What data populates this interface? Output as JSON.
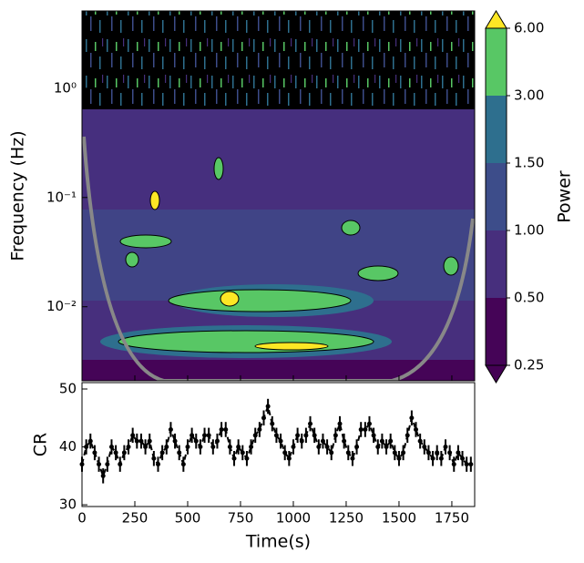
{
  "chart_data": [
    {
      "type": "contour",
      "ylabel": "Frequency (Hz)",
      "yscale": "log",
      "xlim": [
        0,
        1858
      ],
      "ylim": [
        0.0021,
        5.1
      ],
      "yticks": [
        {
          "value": 0.01,
          "label": "10⁻²"
        },
        {
          "value": 0.1,
          "label": "10⁻¹"
        },
        {
          "value": 1,
          "label": "10⁰"
        }
      ],
      "colorbar": {
        "label": "Power",
        "levels": [
          0.25,
          0.5,
          1,
          1.5,
          3,
          6
        ],
        "ticks": [
          {
            "value": 0.25,
            "label": "0.25"
          },
          {
            "value": 0.5,
            "label": "0.50"
          },
          {
            "value": 1,
            "label": "1.00"
          },
          {
            "value": 1.5,
            "label": "1.50"
          },
          {
            "value": 3,
            "label": "3.00"
          },
          {
            "value": 6,
            "label": "6.00"
          }
        ],
        "colors": [
          "#450457",
          "#472f7d",
          "#3d4d8a",
          "#2e6f8e",
          "#58c765"
        ],
        "under_color": "#440154",
        "over_color": "#fde725"
      }
    },
    {
      "type": "errorbar",
      "xlabel": "Time(s)",
      "ylabel": "CR",
      "color": "#000000",
      "xlim": [
        0,
        1858
      ],
      "ylim": [
        29.7,
        51.1
      ],
      "xticks": [
        0,
        250,
        500,
        750,
        1000,
        1250,
        1500,
        1750
      ],
      "yticks": [
        30,
        40,
        50
      ],
      "x": [
        0,
        20,
        40,
        60,
        80,
        100,
        120,
        140,
        160,
        180,
        200,
        220,
        240,
        260,
        280,
        300,
        320,
        340,
        360,
        380,
        400,
        420,
        440,
        460,
        480,
        500,
        520,
        540,
        560,
        580,
        600,
        620,
        640,
        660,
        680,
        700,
        720,
        740,
        760,
        780,
        800,
        820,
        840,
        860,
        880,
        900,
        920,
        940,
        960,
        980,
        1000,
        1020,
        1040,
        1060,
        1080,
        1100,
        1120,
        1140,
        1160,
        1180,
        1200,
        1220,
        1240,
        1260,
        1280,
        1300,
        1320,
        1340,
        1360,
        1380,
        1400,
        1420,
        1440,
        1460,
        1480,
        1500,
        1520,
        1540,
        1560,
        1580,
        1600,
        1620,
        1640,
        1660,
        1680,
        1700,
        1720,
        1740,
        1760,
        1780,
        1800,
        1820,
        1840
      ],
      "values": [
        37,
        40,
        41,
        39,
        37,
        35,
        37,
        40,
        39,
        37,
        39,
        40,
        42,
        41,
        41,
        40,
        41,
        38,
        37,
        39,
        40,
        43,
        41,
        39,
        37,
        40,
        42,
        41,
        40,
        42,
        42,
        40,
        41,
        43,
        43,
        40,
        38,
        40,
        39,
        38,
        40,
        42,
        43,
        45,
        47,
        44,
        42,
        41,
        39,
        38,
        40,
        42,
        41,
        42,
        44,
        42,
        40,
        41,
        40,
        39,
        42,
        44,
        41,
        39,
        38,
        40,
        43,
        43,
        44,
        42,
        40,
        41,
        40,
        41,
        39,
        38,
        39,
        42,
        45,
        43,
        41,
        40,
        39,
        38,
        39,
        38,
        40,
        39,
        37,
        39,
        38,
        37,
        37
      ],
      "errors": [
        1.3,
        1.3,
        1.3,
        1.3,
        1.3,
        1.3,
        1.3,
        1.3,
        1.3,
        1.3,
        1.3,
        1.3,
        1.3,
        1.3,
        1.3,
        1.3,
        1.3,
        1.3,
        1.3,
        1.3,
        1.3,
        1.3,
        1.3,
        1.3,
        1.3,
        1.3,
        1.3,
        1.3,
        1.3,
        1.3,
        1.3,
        1.3,
        1.3,
        1.3,
        1.3,
        1.3,
        1.3,
        1.3,
        1.3,
        1.3,
        1.3,
        1.3,
        1.3,
        1.3,
        1.3,
        1.3,
        1.3,
        1.3,
        1.3,
        1.3,
        1.3,
        1.3,
        1.3,
        1.3,
        1.3,
        1.3,
        1.3,
        1.3,
        1.3,
        1.3,
        1.3,
        1.3,
        1.3,
        1.3,
        1.3,
        1.3,
        1.3,
        1.3,
        1.3,
        1.3,
        1.3,
        1.3,
        1.3,
        1.3,
        1.3,
        1.3,
        1.3,
        1.3,
        1.3,
        1.3,
        1.3,
        1.3,
        1.3,
        1.3,
        1.3,
        1.3,
        1.3,
        1.3,
        1.3,
        1.3,
        1.3,
        1.3,
        1.3
      ]
    }
  ]
}
